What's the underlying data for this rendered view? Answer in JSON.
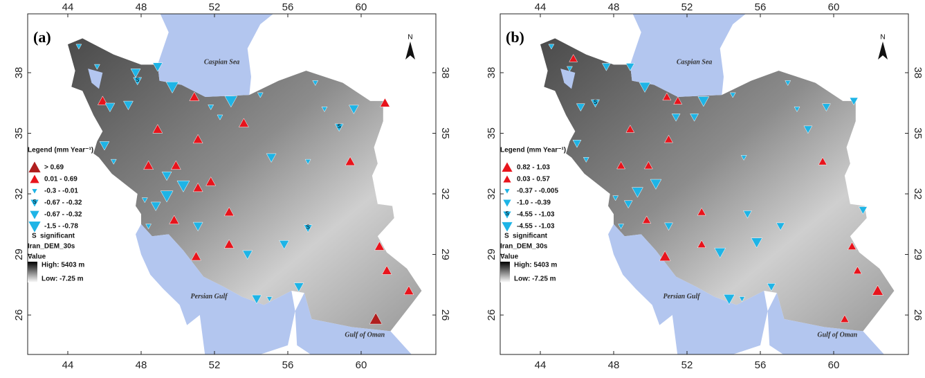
{
  "axes": {
    "lon_ticks": [
      44,
      48,
      52,
      56,
      60
    ],
    "lat_ticks": [
      26,
      29,
      32,
      35,
      38
    ]
  },
  "seas": [
    "Caspian Sea",
    "Persian Gulf",
    "Gulf of Oman"
  ],
  "north": "N",
  "colors": {
    "land_high": "#3a3a3a",
    "land_low": "#e6e6e6",
    "water": "#b3c6ef"
  },
  "panels": [
    {
      "label": "(a)",
      "legend": {
        "title": "Legend (mm Year⁻¹)",
        "items": [
          {
            "label": "> 0.69",
            "marker": "up",
            "color": "#b01e1e"
          },
          {
            "label": "0.01 - 0.69",
            "marker": "up",
            "color": "#e8141c"
          },
          {
            "label": "-0.3 - -0.01",
            "marker": "down",
            "color": "#1eb4e6"
          },
          {
            "label": "-0.67 - -0.32",
            "marker": "down",
            "color": "#1eb4e6",
            "significant": true
          },
          {
            "label": "-0.67 - -0.32",
            "marker": "down",
            "color": "#1eb4e6"
          },
          {
            "label": "-1.5 - -0.78",
            "marker": "down",
            "color": "#1eb4e6"
          }
        ],
        "significant_symbol": "S",
        "significant": "significant",
        "dem_title": "Iran_DEM_30s",
        "dem_value": "Value",
        "dem_high": "High: 5403 m",
        "dem_low": "Low: -7.25  m"
      },
      "stations": [
        {
          "lon": 45.9,
          "lat": 36.6,
          "class": 1
        },
        {
          "lon": 48.9,
          "lat": 35.2,
          "class": 1
        },
        {
          "lon": 51.1,
          "lat": 34.7,
          "class": 1
        },
        {
          "lon": 48.4,
          "lat": 33.4,
          "class": 1
        },
        {
          "lon": 49.9,
          "lat": 33.4,
          "class": 1
        },
        {
          "lon": 51.1,
          "lat": 32.3,
          "class": 1
        },
        {
          "lon": 51.8,
          "lat": 32.6,
          "class": 1
        },
        {
          "lon": 52.8,
          "lat": 31.1,
          "class": 1
        },
        {
          "lon": 49.8,
          "lat": 30.7,
          "class": 1
        },
        {
          "lon": 52.8,
          "lat": 29.5,
          "class": 1
        },
        {
          "lon": 51.0,
          "lat": 28.9,
          "class": 1
        },
        {
          "lon": 53.6,
          "lat": 35.5,
          "class": 1
        },
        {
          "lon": 50.9,
          "lat": 36.8,
          "class": 1
        },
        {
          "lon": 59.4,
          "lat": 33.6,
          "class": 1
        },
        {
          "lon": 61.3,
          "lat": 36.5,
          "class": 1
        },
        {
          "lon": 61.0,
          "lat": 29.4,
          "class": 1
        },
        {
          "lon": 61.4,
          "lat": 28.2,
          "class": 1
        },
        {
          "lon": 62.6,
          "lat": 27.2,
          "class": 1
        },
        {
          "lon": 60.8,
          "lat": 25.8,
          "class": 0
        },
        {
          "lon": 44.6,
          "lat": 39.3,
          "class": 2
        },
        {
          "lon": 45.6,
          "lat": 38.3,
          "class": 2
        },
        {
          "lon": 47.7,
          "lat": 38.0,
          "class": 4
        },
        {
          "lon": 48.9,
          "lat": 38.3,
          "class": 4
        },
        {
          "lon": 49.7,
          "lat": 37.3,
          "class": 5
        },
        {
          "lon": 47.3,
          "lat": 36.4,
          "class": 4
        },
        {
          "lon": 46.3,
          "lat": 36.3,
          "class": 4
        },
        {
          "lon": 46.0,
          "lat": 34.4,
          "class": 4
        },
        {
          "lon": 46.5,
          "lat": 33.6,
          "class": 2
        },
        {
          "lon": 49.4,
          "lat": 32.9,
          "class": 4
        },
        {
          "lon": 50.3,
          "lat": 32.4,
          "class": 5
        },
        {
          "lon": 49.4,
          "lat": 31.9,
          "class": 5
        },
        {
          "lon": 48.8,
          "lat": 31.4,
          "class": 4
        },
        {
          "lon": 48.2,
          "lat": 31.7,
          "class": 2
        },
        {
          "lon": 48.4,
          "lat": 30.4,
          "class": 2
        },
        {
          "lon": 51.1,
          "lat": 30.4,
          "class": 4
        },
        {
          "lon": 52.9,
          "lat": 36.6,
          "class": 5
        },
        {
          "lon": 54.5,
          "lat": 36.9,
          "class": 2
        },
        {
          "lon": 57.5,
          "lat": 37.5,
          "class": 2
        },
        {
          "lon": 58.0,
          "lat": 36.2,
          "class": 2
        },
        {
          "lon": 59.6,
          "lat": 36.2,
          "class": 4
        },
        {
          "lon": 58.8,
          "lat": 35.3,
          "class": 3
        },
        {
          "lon": 55.1,
          "lat": 33.8,
          "class": 4
        },
        {
          "lon": 57.1,
          "lat": 33.6,
          "class": 2
        },
        {
          "lon": 57.1,
          "lat": 30.3,
          "class": 3
        },
        {
          "lon": 55.8,
          "lat": 29.5,
          "class": 4
        },
        {
          "lon": 53.8,
          "lat": 29.0,
          "class": 4
        },
        {
          "lon": 56.6,
          "lat": 27.4,
          "class": 4
        },
        {
          "lon": 54.3,
          "lat": 26.8,
          "class": 4
        },
        {
          "lon": 55.0,
          "lat": 26.8,
          "class": 2
        },
        {
          "lon": 47.8,
          "lat": 37.6,
          "class": 3
        },
        {
          "lon": 51.8,
          "lat": 36.3,
          "class": 2
        },
        {
          "lon": 52.3,
          "lat": 35.8,
          "class": 2
        }
      ]
    },
    {
      "label": "(b)",
      "legend": {
        "title": "Legend (mm Year⁻¹)",
        "items": [
          {
            "label": "0.82 - 1.03",
            "marker": "up",
            "color": "#e8141c"
          },
          {
            "label": "0.03 - 0.57",
            "marker": "up",
            "color": "#e8141c"
          },
          {
            "label": "-0.37 - -0.005",
            "marker": "down",
            "color": "#1eb4e6"
          },
          {
            "label": "-1.0 - -0.39",
            "marker": "down",
            "color": "#1eb4e6"
          },
          {
            "label": "-4.55 - -1.03",
            "marker": "down",
            "color": "#1eb4e6",
            "significant": true
          },
          {
            "label": "-4.55 - -1.03",
            "marker": "down",
            "color": "#1eb4e6"
          }
        ],
        "significant_symbol": "S",
        "significant": "significant",
        "dem_title": "Iran_DEM_30s",
        "dem_value": "Value",
        "dem_high": "High: 5403 m",
        "dem_low": "Low: -7.25  m"
      },
      "stations": [
        {
          "lon": 45.8,
          "lat": 38.7,
          "class": 1
        },
        {
          "lon": 48.9,
          "lat": 35.2,
          "class": 1
        },
        {
          "lon": 51.0,
          "lat": 34.7,
          "class": 1
        },
        {
          "lon": 48.4,
          "lat": 33.4,
          "class": 1
        },
        {
          "lon": 49.9,
          "lat": 33.4,
          "class": 1
        },
        {
          "lon": 52.8,
          "lat": 31.1,
          "class": 1
        },
        {
          "lon": 49.8,
          "lat": 30.7,
          "class": 1
        },
        {
          "lon": 52.8,
          "lat": 29.5,
          "class": 1
        },
        {
          "lon": 50.8,
          "lat": 28.9,
          "class": 0
        },
        {
          "lon": 50.9,
          "lat": 36.8,
          "class": 1
        },
        {
          "lon": 51.5,
          "lat": 36.6,
          "class": 1
        },
        {
          "lon": 59.4,
          "lat": 33.6,
          "class": 1
        },
        {
          "lon": 61.0,
          "lat": 29.4,
          "class": 1
        },
        {
          "lon": 61.3,
          "lat": 28.2,
          "class": 1
        },
        {
          "lon": 62.4,
          "lat": 27.2,
          "class": 0
        },
        {
          "lon": 60.6,
          "lat": 25.8,
          "class": 1
        },
        {
          "lon": 44.6,
          "lat": 39.3,
          "class": 2
        },
        {
          "lon": 45.6,
          "lat": 38.2,
          "class": 2
        },
        {
          "lon": 47.6,
          "lat": 38.3,
          "class": 3
        },
        {
          "lon": 48.9,
          "lat": 38.3,
          "class": 3
        },
        {
          "lon": 49.7,
          "lat": 37.3,
          "class": 5
        },
        {
          "lon": 47.0,
          "lat": 36.5,
          "class": 4
        },
        {
          "lon": 46.2,
          "lat": 36.3,
          "class": 3
        },
        {
          "lon": 46.0,
          "lat": 34.5,
          "class": 3
        },
        {
          "lon": 46.5,
          "lat": 33.7,
          "class": 2
        },
        {
          "lon": 49.3,
          "lat": 32.1,
          "class": 5
        },
        {
          "lon": 50.3,
          "lat": 32.5,
          "class": 5
        },
        {
          "lon": 48.8,
          "lat": 31.5,
          "class": 3
        },
        {
          "lon": 48.1,
          "lat": 31.8,
          "class": 2
        },
        {
          "lon": 48.4,
          "lat": 30.4,
          "class": 2
        },
        {
          "lon": 51.0,
          "lat": 30.4,
          "class": 3
        },
        {
          "lon": 52.9,
          "lat": 36.6,
          "class": 5
        },
        {
          "lon": 54.5,
          "lat": 36.9,
          "class": 2
        },
        {
          "lon": 57.5,
          "lat": 37.5,
          "class": 2
        },
        {
          "lon": 58.0,
          "lat": 36.2,
          "class": 2
        },
        {
          "lon": 59.6,
          "lat": 36.3,
          "class": 3
        },
        {
          "lon": 61.1,
          "lat": 36.6,
          "class": 3
        },
        {
          "lon": 58.6,
          "lat": 35.2,
          "class": 3
        },
        {
          "lon": 55.1,
          "lat": 33.8,
          "class": 2
        },
        {
          "lon": 55.3,
          "lat": 31.0,
          "class": 3
        },
        {
          "lon": 57.1,
          "lat": 30.4,
          "class": 3
        },
        {
          "lon": 55.8,
          "lat": 29.6,
          "class": 5
        },
        {
          "lon": 53.8,
          "lat": 29.1,
          "class": 5
        },
        {
          "lon": 56.6,
          "lat": 27.4,
          "class": 3
        },
        {
          "lon": 54.3,
          "lat": 26.8,
          "class": 5
        },
        {
          "lon": 55.0,
          "lat": 26.8,
          "class": 2
        },
        {
          "lon": 61.6,
          "lat": 31.2,
          "class": 3
        },
        {
          "lon": 51.4,
          "lat": 35.8,
          "class": 3
        },
        {
          "lon": 52.4,
          "lat": 35.8,
          "class": 3
        }
      ]
    }
  ]
}
